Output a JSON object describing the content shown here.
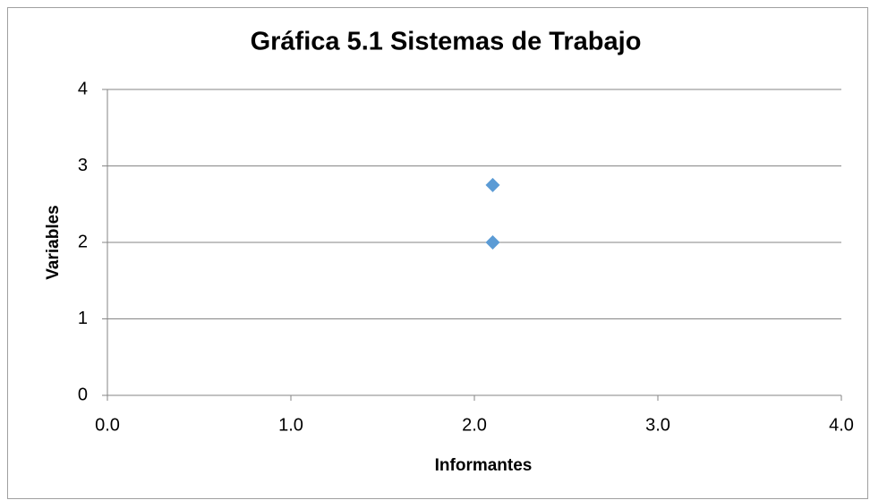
{
  "chart_data": {
    "type": "scatter",
    "title": "Gráfica 5.1 Sistemas de Trabajo",
    "x_label": "Informantes",
    "y_label": "Variables",
    "series": [
      {
        "name": "Series1",
        "color": "#5b9bd5",
        "x": [
          2.1,
          2.1
        ],
        "values": [
          2.75,
          2.0
        ]
      }
    ],
    "xlim": [
      0,
      4
    ],
    "xticks": [
      {
        "value": 0,
        "label": "0.0"
      },
      {
        "value": 1,
        "label": "1.0"
      },
      {
        "value": 2,
        "label": "2.0"
      },
      {
        "value": 3,
        "label": "3.0"
      },
      {
        "value": 4,
        "label": "4.0"
      }
    ],
    "ylim": [
      0,
      4
    ],
    "yticks": [
      0,
      1,
      2,
      3,
      4
    ],
    "grid": true,
    "legend": false
  }
}
